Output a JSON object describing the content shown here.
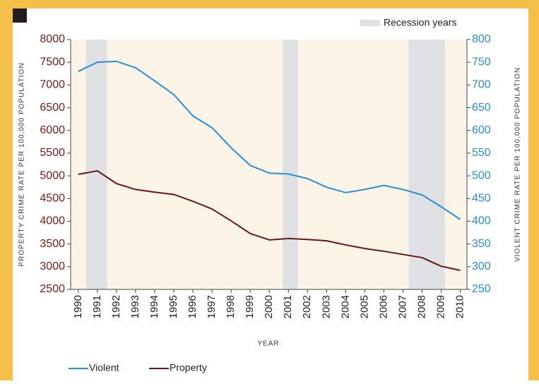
{
  "chart_data": {
    "type": "line",
    "x": [
      1990,
      1991,
      1992,
      1993,
      1994,
      1995,
      1996,
      1997,
      1998,
      1999,
      2000,
      2001,
      2002,
      2003,
      2004,
      2005,
      2006,
      2007,
      2008,
      2009,
      2010
    ],
    "xlim": [
      1989.6,
      2010.35
    ],
    "xticks": [
      1990,
      1991,
      1992,
      1993,
      1994,
      1995,
      1996,
      1997,
      1998,
      1999,
      2000,
      2001,
      2002,
      2003,
      2004,
      2005,
      2006,
      2007,
      2008,
      2009,
      2010
    ],
    "xlabel": "YEAR",
    "ylabel": "PROPERTY CRIME RATE PER 100,000 POPULATION",
    "y2label": "VIOLENT CRIME RATE PER 100,000 POPULATION",
    "ylim": [
      2500,
      8000
    ],
    "yticks": [
      2500,
      3000,
      3500,
      4000,
      4500,
      5000,
      5500,
      6000,
      6500,
      7000,
      7500,
      8000
    ],
    "y2lim": [
      250,
      800
    ],
    "y2ticks": [
      250,
      300,
      350,
      400,
      450,
      500,
      550,
      600,
      650,
      700,
      750,
      800
    ],
    "recession_label": "Recession years",
    "recession_color": "#dfe1e4",
    "recessions": [
      [
        1990.4,
        1991.5
      ],
      [
        2000.7,
        2001.5
      ],
      [
        2007.3,
        2009.2
      ]
    ],
    "series": [
      {
        "name": "Violent",
        "color": "#2b8fd0",
        "axis": "y2",
        "values": [
          730,
          750,
          752,
          738,
          709,
          679,
          632,
          606,
          562,
          523,
          506,
          504,
          494,
          475,
          463,
          470,
          479,
          470,
          458,
          432,
          404
        ]
      },
      {
        "name": "Property",
        "color": "#6b1616",
        "values": [
          5032,
          5110,
          4830,
          4700,
          4640,
          4590,
          4440,
          4270,
          4010,
          3730,
          3590,
          3620,
          3600,
          3570,
          3480,
          3400,
          3340,
          3270,
          3200,
          3010,
          2920
        ]
      }
    ]
  }
}
